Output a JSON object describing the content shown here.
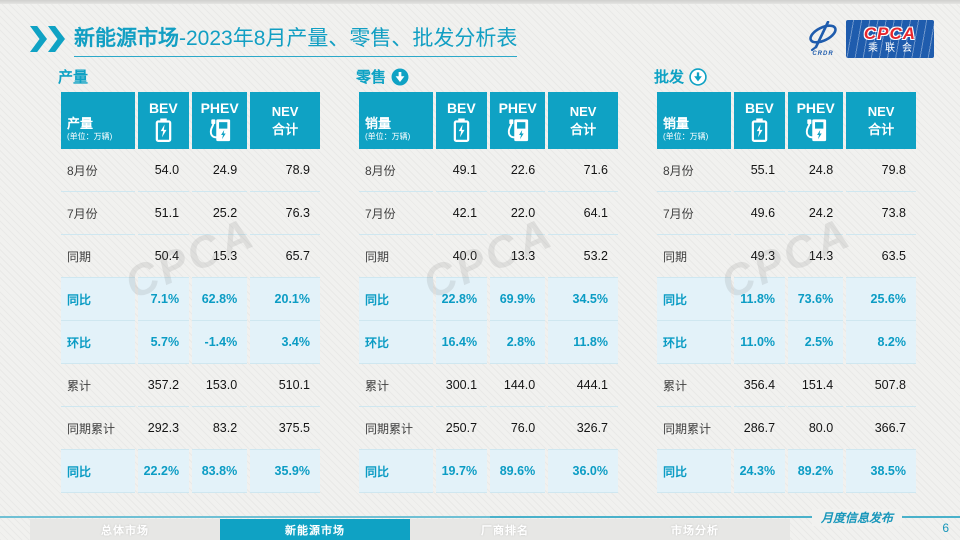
{
  "header": {
    "title_bold": "新能源市场",
    "title_rest": "-2023年8月产量、零售、批发分析表",
    "logo": {
      "cpca": "CPCA",
      "org": "乘联会",
      "swirl_caption": "CRDR"
    }
  },
  "icons": {
    "header_bullet": "double-chevron-icon",
    "bev": "battery-icon",
    "phev": "charger-icon",
    "retail": "arrow-down-circle-filled-icon",
    "wholesale": "arrow-down-circle-outline-icon"
  },
  "watermark": "CPCA",
  "tables": [
    {
      "section_label": "产量",
      "arrow_icon": "none",
      "unit_label": "产量",
      "unit_sub": "(单位：万辆)",
      "columns": {
        "bev": "BEV",
        "phev": "PHEV",
        "nev_line1": "NEV",
        "nev_line2": "合计"
      },
      "rows": [
        {
          "label": "8月份",
          "values": [
            "54.0",
            "24.9",
            "78.9"
          ],
          "highlight": false
        },
        {
          "label": "7月份",
          "values": [
            "51.1",
            "25.2",
            "76.3"
          ],
          "highlight": false
        },
        {
          "label": "同期",
          "values": [
            "50.4",
            "15.3",
            "65.7"
          ],
          "highlight": false
        },
        {
          "label": "同比",
          "values": [
            "7.1%",
            "62.8%",
            "20.1%"
          ],
          "highlight": true
        },
        {
          "label": "环比",
          "values": [
            "5.7%",
            "-1.4%",
            "3.4%"
          ],
          "highlight": true
        },
        {
          "label": "累计",
          "values": [
            "357.2",
            "153.0",
            "510.1"
          ],
          "highlight": false
        },
        {
          "label": "同期累计",
          "values": [
            "292.3",
            "83.2",
            "375.5"
          ],
          "highlight": false
        },
        {
          "label": "同比",
          "values": [
            "22.2%",
            "83.8%",
            "35.9%"
          ],
          "highlight": true
        }
      ]
    },
    {
      "section_label": "零售",
      "arrow_icon": "filled",
      "unit_label": "销量",
      "unit_sub": "(单位：万辆)",
      "columns": {
        "bev": "BEV",
        "phev": "PHEV",
        "nev_line1": "NEV",
        "nev_line2": "合计"
      },
      "rows": [
        {
          "label": "8月份",
          "values": [
            "49.1",
            "22.6",
            "71.6"
          ],
          "highlight": false
        },
        {
          "label": "7月份",
          "values": [
            "42.1",
            "22.0",
            "64.1"
          ],
          "highlight": false
        },
        {
          "label": "同期",
          "values": [
            "40.0",
            "13.3",
            "53.2"
          ],
          "highlight": false
        },
        {
          "label": "同比",
          "values": [
            "22.8%",
            "69.9%",
            "34.5%"
          ],
          "highlight": true
        },
        {
          "label": "环比",
          "values": [
            "16.4%",
            "2.8%",
            "11.8%"
          ],
          "highlight": true
        },
        {
          "label": "累计",
          "values": [
            "300.1",
            "144.0",
            "444.1"
          ],
          "highlight": false
        },
        {
          "label": "同期累计",
          "values": [
            "250.7",
            "76.0",
            "326.7"
          ],
          "highlight": false
        },
        {
          "label": "同比",
          "values": [
            "19.7%",
            "89.6%",
            "36.0%"
          ],
          "highlight": true
        }
      ]
    },
    {
      "section_label": "批发",
      "arrow_icon": "outline",
      "unit_label": "销量",
      "unit_sub": "(单位：万辆)",
      "columns": {
        "bev": "BEV",
        "phev": "PHEV",
        "nev_line1": "NEV",
        "nev_line2": "合计"
      },
      "rows": [
        {
          "label": "8月份",
          "values": [
            "55.1",
            "24.8",
            "79.8"
          ],
          "highlight": false
        },
        {
          "label": "7月份",
          "values": [
            "49.6",
            "24.2",
            "73.8"
          ],
          "highlight": false
        },
        {
          "label": "同期",
          "values": [
            "49.3",
            "14.3",
            "63.5"
          ],
          "highlight": false
        },
        {
          "label": "同比",
          "values": [
            "11.8%",
            "73.6%",
            "25.6%"
          ],
          "highlight": true
        },
        {
          "label": "环比",
          "values": [
            "11.0%",
            "2.5%",
            "8.2%"
          ],
          "highlight": true
        },
        {
          "label": "累计",
          "values": [
            "356.4",
            "151.4",
            "507.8"
          ],
          "highlight": false
        },
        {
          "label": "同期累计",
          "values": [
            "286.7",
            "80.0",
            "366.7"
          ],
          "highlight": false
        },
        {
          "label": "同比",
          "values": [
            "24.3%",
            "89.2%",
            "38.5%"
          ],
          "highlight": true
        }
      ]
    }
  ],
  "footer": {
    "tabs": [
      {
        "label": "总体市场",
        "active": false
      },
      {
        "label": "新能源市场",
        "active": true
      },
      {
        "label": "厂商排名",
        "active": false
      },
      {
        "label": "市场分析",
        "active": false
      }
    ],
    "publication": "月度信息发布",
    "page_number": "6"
  },
  "colors": {
    "accent": "#0fa2c4",
    "highlight_bg": "#e3f2f9",
    "highlight_text": "#0b9cc4",
    "logo_blue": "#1f5cad",
    "logo_red": "#e8262d"
  }
}
